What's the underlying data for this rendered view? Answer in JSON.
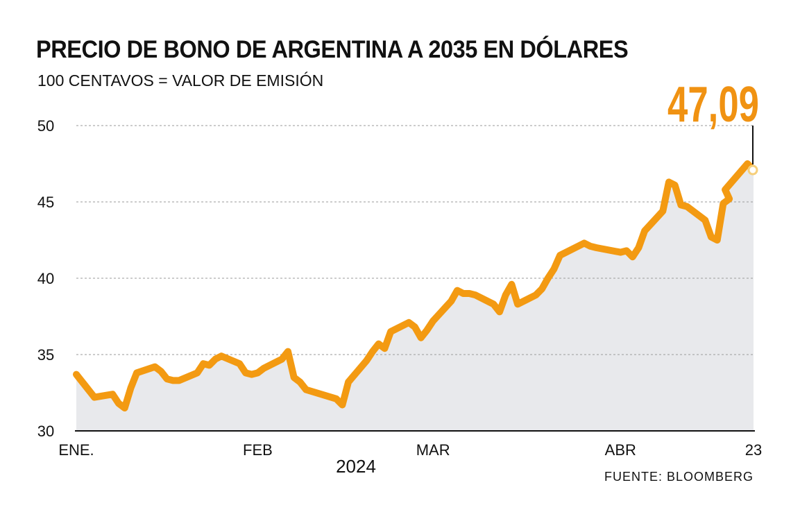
{
  "title": "PRECIO DE BONO DE ARGENTINA A 2035 EN DÓLARES",
  "subtitle": "100 CENTAVOS = VALOR DE EMISIÓN",
  "source": "FUENTE: BLOOMBERG",
  "colors": {
    "line": "#f39a12",
    "area": "#e8e9ec",
    "grid": "#9a9a9a",
    "highlight": "#f09212",
    "marker_fill": "#ffffff",
    "marker_stroke": "#f6cf7a"
  },
  "chart_data": {
    "type": "area",
    "title": "PRECIO DE BONO DE ARGENTINA A 2035 EN DÓLARES",
    "subtitle": "100 CENTAVOS = VALOR DE EMISIÓN",
    "xlabel": "2024",
    "ylabel": "",
    "ylim": [
      30,
      50
    ],
    "yticks": [
      30,
      35,
      40,
      45,
      50
    ],
    "xlim": [
      "2024-01-02",
      "2024-04-23"
    ],
    "xticks": [
      {
        "label": "ENE.",
        "date": "2024-01-02"
      },
      {
        "label": "FEB",
        "date": "2024-02-01"
      },
      {
        "label": "MAR",
        "date": "2024-03-01"
      },
      {
        "label": "ABR",
        "date": "2024-04-01"
      },
      {
        "label": "23",
        "date": "2024-04-23"
      }
    ],
    "grid": true,
    "last_value_label": "47,09",
    "last_value": 47.09,
    "series": [
      {
        "points": [
          [
            "2024-01-02",
            33.7
          ],
          [
            "2024-01-03",
            33.2
          ],
          [
            "2024-01-04",
            32.7
          ],
          [
            "2024-01-05",
            32.2
          ],
          [
            "2024-01-08",
            32.4
          ],
          [
            "2024-01-09",
            31.8
          ],
          [
            "2024-01-10",
            31.5
          ],
          [
            "2024-01-11",
            32.8
          ],
          [
            "2024-01-12",
            33.8
          ],
          [
            "2024-01-15",
            34.2
          ],
          [
            "2024-01-16",
            33.9
          ],
          [
            "2024-01-17",
            33.4
          ],
          [
            "2024-01-18",
            33.3
          ],
          [
            "2024-01-19",
            33.3
          ],
          [
            "2024-01-22",
            33.8
          ],
          [
            "2024-01-23",
            34.4
          ],
          [
            "2024-01-24",
            34.3
          ],
          [
            "2024-01-25",
            34.7
          ],
          [
            "2024-01-26",
            34.9
          ],
          [
            "2024-01-29",
            34.4
          ],
          [
            "2024-01-30",
            33.8
          ],
          [
            "2024-01-31",
            33.7
          ],
          [
            "2024-02-01",
            33.8
          ],
          [
            "2024-02-02",
            34.1
          ],
          [
            "2024-02-05",
            34.7
          ],
          [
            "2024-02-06",
            35.2
          ],
          [
            "2024-02-07",
            33.5
          ],
          [
            "2024-02-08",
            33.2
          ],
          [
            "2024-02-09",
            32.7
          ],
          [
            "2024-02-14",
            32.1
          ],
          [
            "2024-02-15",
            31.7
          ],
          [
            "2024-02-16",
            33.2
          ],
          [
            "2024-02-19",
            34.6
          ],
          [
            "2024-02-20",
            35.2
          ],
          [
            "2024-02-21",
            35.7
          ],
          [
            "2024-02-22",
            35.4
          ],
          [
            "2024-02-23",
            36.5
          ],
          [
            "2024-02-26",
            37.1
          ],
          [
            "2024-02-27",
            36.8
          ],
          [
            "2024-02-28",
            36.1
          ],
          [
            "2024-02-29",
            36.6
          ],
          [
            "2024-03-01",
            37.2
          ],
          [
            "2024-03-04",
            38.5
          ],
          [
            "2024-03-05",
            39.2
          ],
          [
            "2024-03-06",
            39.0
          ],
          [
            "2024-03-07",
            39.0
          ],
          [
            "2024-03-08",
            38.9
          ],
          [
            "2024-03-11",
            38.3
          ],
          [
            "2024-03-12",
            37.8
          ],
          [
            "2024-03-13",
            38.9
          ],
          [
            "2024-03-14",
            39.6
          ],
          [
            "2024-03-15",
            38.3
          ],
          [
            "2024-03-18",
            38.9
          ],
          [
            "2024-03-19",
            39.3
          ],
          [
            "2024-03-20",
            40.0
          ],
          [
            "2024-03-21",
            40.6
          ],
          [
            "2024-03-22",
            41.5
          ],
          [
            "2024-03-25",
            42.1
          ],
          [
            "2024-03-26",
            42.3
          ],
          [
            "2024-03-27",
            42.1
          ],
          [
            "2024-03-28",
            42.0
          ],
          [
            "2024-04-01",
            41.7
          ],
          [
            "2024-04-02",
            41.8
          ],
          [
            "2024-04-03",
            41.4
          ],
          [
            "2024-04-04",
            42.0
          ],
          [
            "2024-04-05",
            43.1
          ],
          [
            "2024-04-08",
            44.4
          ],
          [
            "2024-04-09",
            46.3
          ],
          [
            "2024-04-10",
            46.1
          ],
          [
            "2024-04-11",
            44.8
          ],
          [
            "2024-04-12",
            44.7
          ],
          [
            "2024-04-15",
            43.8
          ],
          [
            "2024-04-16",
            42.7
          ],
          [
            "2024-04-17",
            42.5
          ],
          [
            "2024-04-18",
            44.9
          ],
          [
            "2024-04-19",
            45.2
          ],
          [
            "2024-04-19",
            45.8
          ],
          [
            "2024-04-22",
            47.5
          ],
          [
            "2024-04-23",
            47.09
          ]
        ]
      }
    ]
  }
}
